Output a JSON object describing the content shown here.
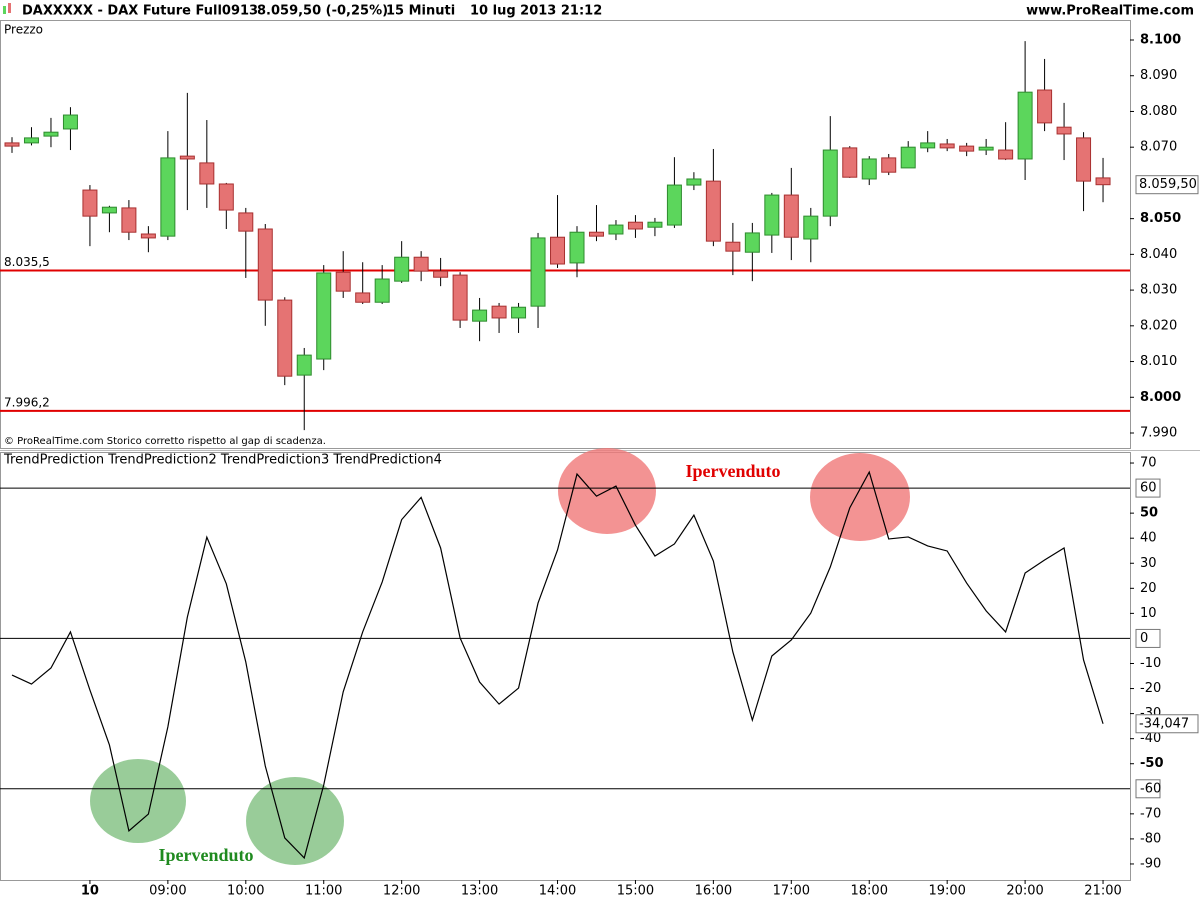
{
  "header": {
    "symbol": "DAXXXXX - DAX Future Full0913",
    "quote": "8.059,50 (-0,25%)",
    "timeframe": "15 Minuti",
    "datetime": "10 lug 2013 21:12",
    "site": "www.ProRealTime.com"
  },
  "chart_data": [
    {
      "type": "candlestick",
      "title": "Prezzo",
      "note": "© ProRealTime.com  Storico corretto rispetto al gap di scadenza.",
      "up_color": "#5cd65c",
      "down_color": "#e57373",
      "x": [
        7,
        7.25,
        7.5,
        7.75,
        8,
        8.25,
        8.5,
        8.75,
        9,
        9.25,
        9.5,
        9.75,
        10,
        10.25,
        10.5,
        10.75,
        11,
        11.25,
        11.5,
        11.75,
        12,
        12.25,
        12.5,
        12.75,
        13,
        13.25,
        13.5,
        13.75,
        14,
        14.25,
        14.5,
        14.75,
        15,
        15.25,
        15.5,
        15.75,
        16,
        16.25,
        16.5,
        16.75,
        17,
        17.25,
        17.5,
        17.75,
        18,
        18.25,
        18.5,
        18.75,
        19,
        19.25,
        19.5,
        19.75,
        20,
        20.25,
        20.5,
        20.75,
        21
      ],
      "open": [
        8071.2,
        8071.2,
        8073.1,
        8075.1,
        8058.0,
        8051.6,
        8053.0,
        8045.7,
        8045.1,
        8067.5,
        8065.6,
        8059.7,
        8051.6,
        8047.1,
        8027.2,
        8006.2,
        8010.7,
        8035.0,
        8029.2,
        8026.6,
        8032.5,
        8039.2,
        8035.3,
        8034.2,
        8021.3,
        8025.5,
        8022.2,
        8025.5,
        8044.8,
        8037.6,
        8046.2,
        8045.7,
        8049.0,
        8047.6,
        8048.2,
        8059.4,
        8060.5,
        8043.4,
        8040.6,
        8045.4,
        8056.6,
        8044.3,
        8050.7,
        8069.8,
        8061.1,
        8067.0,
        8064.2,
        8069.8,
        8070.9,
        8070.3,
        8069.2,
        8069.2,
        8066.7,
        8086.0,
        8075.6,
        8072.6,
        8061.4
      ],
      "high": [
        8072.8,
        8075.6,
        8078.2,
        8081.2,
        8059.4,
        8053.6,
        8055.2,
        8047.9,
        8074.5,
        8085.2,
        8077.6,
        8060.0,
        8053.0,
        8048.5,
        8028.0,
        8013.8,
        8037.0,
        8040.9,
        8037.8,
        8037.0,
        8043.7,
        8040.9,
        8039.0,
        8035.0,
        8027.8,
        8026.4,
        8026.4,
        8046.0,
        8056.6,
        8047.9,
        8053.8,
        8049.6,
        8051.0,
        8050.2,
        8067.2,
        8063.0,
        8069.5,
        8048.8,
        8048.8,
        8057.2,
        8064.2,
        8053.0,
        8078.7,
        8070.3,
        8067.5,
        8068.1,
        8071.7,
        8074.5,
        8072.3,
        8071.2,
        8072.3,
        8077.0,
        8099.7,
        8094.7,
        8082.4,
        8074.2,
        8067.0
      ],
      "low": [
        8068.4,
        8070.5,
        8070.0,
        8069.2,
        8042.3,
        8046.2,
        8044.0,
        8040.6,
        8044.0,
        8052.4,
        8053.0,
        8047.1,
        8033.4,
        8020.0,
        8003.4,
        7990.8,
        8007.6,
        8027.8,
        8026.1,
        8026.1,
        8032.0,
        8032.5,
        8031.1,
        8019.4,
        8015.7,
        8018.0,
        8018.0,
        8019.4,
        8036.2,
        8033.6,
        8043.7,
        8044.0,
        8044.6,
        8045.1,
        8047.4,
        8058.0,
        8042.3,
        8034.2,
        8032.5,
        8040.4,
        8038.4,
        8037.8,
        8047.9,
        8061.4,
        8059.4,
        8062.2,
        8064.2,
        8068.6,
        8068.9,
        8067.5,
        8067.8,
        8066.4,
        8060.8,
        8074.5,
        8066.4,
        8052.1,
        8054.6
      ],
      "close": [
        8070.3,
        8072.6,
        8074.2,
        8079.0,
        8050.7,
        8053.2,
        8046.2,
        8044.6,
        8067.0,
        8066.7,
        8059.7,
        8052.4,
        8046.5,
        8027.2,
        8005.9,
        8011.8,
        8034.8,
        8029.7,
        8026.6,
        8033.1,
        8039.2,
        8035.3,
        8033.6,
        8021.6,
        8024.4,
        8022.2,
        8025.2,
        8044.6,
        8037.3,
        8046.2,
        8045.1,
        8048.2,
        8047.1,
        8049.0,
        8059.4,
        8061.1,
        8043.7,
        8040.9,
        8046.0,
        8056.6,
        8044.8,
        8050.7,
        8069.2,
        8061.6,
        8066.7,
        8063.0,
        8070.0,
        8071.2,
        8069.8,
        8068.9,
        8070.0,
        8066.7,
        8085.4,
        8076.8,
        8073.7,
        8060.5,
        8059.5
      ],
      "xlim": [
        6.846,
        21.346
      ],
      "ylim": [
        7985.8,
        8105.6
      ],
      "yticks": [
        {
          "value": 8100,
          "label": "8.100"
        },
        {
          "value": 8090,
          "label": "8.090"
        },
        {
          "value": 8080,
          "label": "8.080"
        },
        {
          "value": 8070,
          "label": "8.070"
        },
        {
          "value": 8050,
          "label": "8.050"
        },
        {
          "value": 8040,
          "label": "8.040"
        },
        {
          "value": 8030,
          "label": "8.030"
        },
        {
          "value": 8020,
          "label": "8.020"
        },
        {
          "value": 8010,
          "label": "8.010"
        },
        {
          "value": 8000,
          "label": "8.000"
        },
        {
          "value": 7990,
          "label": "7.990"
        }
      ],
      "hlines": [
        {
          "value": 8035.5,
          "label": "8.035,5",
          "color": "#e00000"
        },
        {
          "value": 7996.2,
          "label": "7.996,2",
          "color": "#e00000"
        }
      ],
      "last_value": {
        "value": 8059.5,
        "label": "8.059,50"
      }
    },
    {
      "type": "line",
      "title": "TrendPrediction TrendPrediction2 TrendPrediction3 TrendPrediction4",
      "x": [
        7,
        7.25,
        7.5,
        7.75,
        8,
        8.25,
        8.5,
        8.75,
        9,
        9.25,
        9.5,
        9.75,
        10,
        10.25,
        10.5,
        10.75,
        11,
        11.25,
        11.5,
        11.75,
        12,
        12.25,
        12.5,
        12.75,
        13,
        13.25,
        13.5,
        13.75,
        14,
        14.25,
        14.5,
        14.75,
        15,
        15.25,
        15.5,
        15.75,
        16,
        16.25,
        16.5,
        16.75,
        17,
        17.25,
        17.5,
        17.75,
        18,
        18.25,
        18.5,
        18.75,
        19,
        19.25,
        19.5,
        19.75,
        20,
        20.25,
        20.5,
        20.75,
        21
      ],
      "series": [
        {
          "color": "#000000",
          "values": [
            -14.6,
            -18.2,
            -11.8,
            2.6,
            -20.6,
            -42.5,
            -76.8,
            -70.1,
            -35.3,
            8.5,
            40.4,
            21.8,
            -9.4,
            -50.9,
            -79.6,
            -87.6,
            -58.5,
            -21.3,
            2.6,
            22.5,
            47.4,
            56.3,
            36.1,
            0.2,
            -17.4,
            -26.2,
            -19.8,
            14.1,
            35.3,
            65.6,
            56.8,
            60.8,
            45.2,
            32.9,
            37.7,
            49.2,
            30.9,
            -5.4,
            -32.6,
            -7.0,
            -0.6,
            10.1,
            28.5,
            52.1,
            66.4,
            39.7,
            40.5,
            36.9,
            34.9,
            22.1,
            11.0,
            2.6,
            26.1,
            31.3,
            36.1,
            -8.6,
            -34.047
          ]
        }
      ],
      "xlim": [
        6.846,
        21.346
      ],
      "ylim": [
        -96.4,
        74.4
      ],
      "yticks": [
        70,
        50,
        40,
        30,
        20,
        10,
        -10,
        -20,
        -30,
        -40,
        -50,
        -70,
        -80,
        -90
      ],
      "hlines": [
        {
          "value": 60,
          "label": 60
        },
        {
          "value": 0,
          "label": 0
        },
        {
          "value": -60,
          "label": -60
        }
      ],
      "last_value": {
        "value": -34.047,
        "label": "-34,047"
      },
      "xticks": [
        {
          "value": 8,
          "label": "10"
        },
        {
          "value": 9,
          "label": "09:00"
        },
        {
          "value": 10,
          "label": "10:00"
        },
        {
          "value": 11,
          "label": "11:00"
        },
        {
          "value": 12,
          "label": "12:00"
        },
        {
          "value": 13,
          "label": "13:00"
        },
        {
          "value": 14,
          "label": "14:00"
        },
        {
          "value": 15,
          "label": "15:00"
        },
        {
          "value": 16,
          "label": "16:00"
        },
        {
          "value": 17,
          "label": "17:00"
        },
        {
          "value": 18,
          "label": "18:00"
        },
        {
          "value": 19,
          "label": "19:00"
        },
        {
          "value": 20,
          "label": "20:00"
        },
        {
          "value": 21,
          "label": "21:00"
        }
      ],
      "annotations": [
        {
          "text": "Ipervenduto",
          "color": "#e00000"
        },
        {
          "text": "Ipervenduto",
          "color": "#1f8a1f"
        }
      ]
    }
  ]
}
